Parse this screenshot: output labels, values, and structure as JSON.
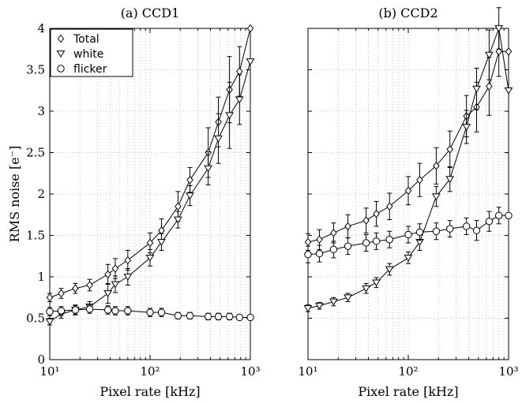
{
  "chart_data": [
    {
      "type": "line",
      "title": "(a) CCD1",
      "xlabel": "Pixel rate [kHz]",
      "ylabel": "RMS noise [e⁻]",
      "xscale": "log",
      "xlim": [
        10,
        1000
      ],
      "ylim": [
        0,
        4
      ],
      "grid": true,
      "legend": "top-left",
      "series": [
        {
          "name": "Total",
          "marker": "diamond",
          "x": [
            10,
            13,
            18,
            25,
            38,
            45,
            60,
            100,
            130,
            190,
            250,
            380,
            480,
            620,
            780,
            1000
          ],
          "y": [
            0.75,
            0.8,
            0.86,
            0.9,
            1.03,
            1.1,
            1.2,
            1.41,
            1.56,
            1.85,
            2.17,
            2.5,
            2.87,
            3.26,
            3.48,
            4.0
          ],
          "err": [
            0.05,
            0.06,
            0.06,
            0.07,
            0.12,
            0.12,
            0.12,
            0.12,
            0.14,
            0.18,
            0.15,
            0.3,
            0.3,
            0.4,
            0.3,
            0
          ]
        },
        {
          "name": "white",
          "marker": "triangle-down",
          "x": [
            10,
            13,
            18,
            25,
            38,
            45,
            60,
            100,
            130,
            190,
            250,
            380,
            480,
            620,
            780,
            1000
          ],
          "y": [
            0.46,
            0.55,
            0.6,
            0.64,
            0.8,
            0.91,
            1.0,
            1.23,
            1.42,
            1.69,
            1.98,
            2.31,
            2.67,
            2.95,
            3.14,
            3.6
          ],
          "err": [
            0.04,
            0.05,
            0.06,
            0.06,
            0.12,
            0.1,
            0.1,
            0.1,
            0.1,
            0.1,
            0.12,
            0.2,
            0.3,
            0.4,
            0.3,
            0
          ]
        },
        {
          "name": "flicker",
          "marker": "circle",
          "x": [
            10,
            13,
            18,
            25,
            38,
            45,
            60,
            100,
            130,
            190,
            250,
            380,
            480,
            620,
            780,
            1000
          ],
          "y": [
            0.58,
            0.59,
            0.6,
            0.61,
            0.6,
            0.59,
            0.59,
            0.57,
            0.57,
            0.53,
            0.53,
            0.52,
            0.52,
            0.52,
            0.51,
            0.51
          ],
          "err": [
            0.05,
            0.05,
            0.05,
            0.05,
            0.05,
            0.05,
            0.05,
            0.05,
            0.05,
            0.04,
            0.04,
            0.04,
            0.04,
            0.04,
            0.03,
            0
          ]
        }
      ],
      "xticks": [
        "10¹",
        "10²",
        "10³"
      ],
      "yticks": [
        "0",
        "0.5",
        "1",
        "1.5",
        "2",
        "2.5",
        "3",
        "3.5",
        "4"
      ],
      "legend_entries": [
        "Total",
        "white",
        "flicker"
      ]
    },
    {
      "type": "line",
      "title": "(b) CCD2",
      "xlabel": "Pixel rate [kHz]",
      "xscale": "log",
      "xlim": [
        10,
        1000
      ],
      "ylim": [
        0,
        4
      ],
      "grid": true,
      "series": [
        {
          "name": "Total",
          "marker": "diamond",
          "x": [
            10,
            13,
            18,
            25,
            38,
            48,
            65,
            100,
            130,
            190,
            260,
            380,
            480,
            640,
            800,
            1000
          ],
          "y": [
            1.42,
            1.45,
            1.53,
            1.61,
            1.68,
            1.76,
            1.85,
            2.04,
            2.17,
            2.34,
            2.54,
            2.94,
            3.05,
            3.3,
            3.72,
            3.72
          ],
          "err": [
            0.1,
            0.12,
            0.12,
            0.14,
            0.15,
            0.15,
            0.16,
            0.17,
            0.2,
            0.22,
            0.22,
            0.25,
            0.3,
            0.35,
            0.3,
            0
          ]
        },
        {
          "name": "white",
          "marker": "triangle-down",
          "x": [
            10,
            13,
            18,
            25,
            38,
            48,
            65,
            100,
            130,
            190,
            260,
            380,
            480,
            640,
            800,
            1000
          ],
          "y": [
            0.62,
            0.65,
            0.7,
            0.75,
            0.86,
            0.93,
            1.09,
            1.23,
            1.42,
            1.97,
            2.18,
            2.81,
            3.27,
            3.68,
            4.0,
            3.25
          ],
          "err": [
            0.04,
            0.04,
            0.05,
            0.05,
            0.06,
            0.06,
            0.07,
            0.07,
            0.1,
            0.12,
            0.15,
            0.2,
            0.25,
            0.3,
            0.25,
            0
          ]
        },
        {
          "name": "flicker",
          "marker": "circle",
          "x": [
            10,
            13,
            18,
            25,
            38,
            48,
            65,
            100,
            130,
            190,
            260,
            380,
            480,
            640,
            800,
            1000
          ],
          "y": [
            1.27,
            1.28,
            1.33,
            1.37,
            1.41,
            1.43,
            1.45,
            1.51,
            1.54,
            1.55,
            1.58,
            1.61,
            1.56,
            1.67,
            1.74,
            1.74
          ],
          "err": [
            0.1,
            0.1,
            0.1,
            0.1,
            0.1,
            0.1,
            0.1,
            0.1,
            0.1,
            0.1,
            0.1,
            0.1,
            0.12,
            0.12,
            0.1,
            0
          ]
        }
      ],
      "xticks": [
        "10¹",
        "10²",
        "10³"
      ]
    }
  ]
}
